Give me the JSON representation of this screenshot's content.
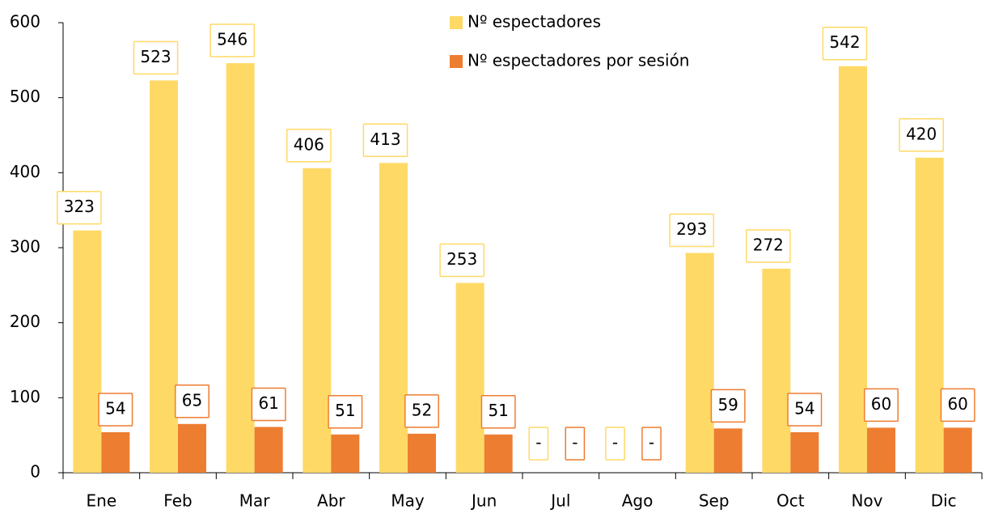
{
  "chart_data": {
    "type": "bar",
    "categories": [
      "Ene",
      "Feb",
      "Mar",
      "Abr",
      "May",
      "Jun",
      "Jul",
      "Ago",
      "Sep",
      "Oct",
      "Nov",
      "Dic"
    ],
    "series": [
      {
        "name": "Nº espectadores",
        "color": "#FFD966",
        "values": [
          323,
          523,
          546,
          406,
          413,
          253,
          null,
          null,
          293,
          272,
          542,
          420
        ],
        "value_labels": [
          "323",
          "523",
          "546",
          "406",
          "413",
          "253",
          "-",
          "-",
          "293",
          "272",
          "542",
          "420"
        ]
      },
      {
        "name": "Nº espectadores por sesión",
        "color": "#ED7D31",
        "values": [
          54,
          65,
          61,
          51,
          52,
          51,
          null,
          null,
          59,
          54,
          60,
          60
        ],
        "value_labels": [
          "54",
          "65",
          "61",
          "51",
          "52",
          "51",
          "-",
          "-",
          "59",
          "54",
          "60",
          "60"
        ]
      }
    ],
    "ylim": [
      0,
      600
    ],
    "yticks": [
      0,
      100,
      200,
      300,
      400,
      500,
      600
    ],
    "grid": false,
    "legend": "top"
  }
}
